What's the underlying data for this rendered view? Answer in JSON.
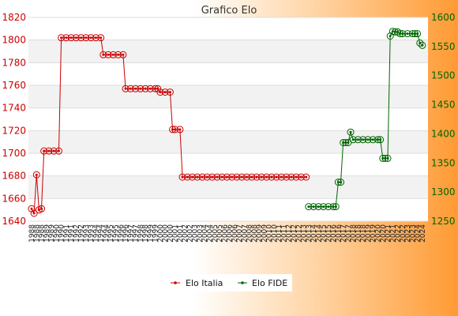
{
  "chart_data": {
    "type": "line",
    "title": "Grafico Elo",
    "y_left": {
      "min": 1640,
      "max": 1820,
      "step": 20,
      "color": "#cc0000"
    },
    "y_right": {
      "min": 1250,
      "max": 1600,
      "step": 50,
      "color": "#006600"
    },
    "grid": true,
    "legend_placement": "bottom",
    "x_tick_labels": [
      "1988",
      "1989",
      "1990",
      "1991",
      "1992",
      "1993",
      "1994",
      "1995",
      "1996",
      "1997",
      "1998",
      "1999",
      "2000",
      "2001",
      "2002",
      "2003",
      "2004",
      "2005",
      "2006",
      "2007",
      "2008",
      "2009",
      "2010",
      "2011",
      "2012",
      "2013",
      "2014",
      "2015",
      "2016",
      "2017",
      "2018",
      "2019",
      "2020",
      "2021",
      "2022",
      "2023",
      "2024"
    ],
    "series": [
      {
        "name": "Elo Italia",
        "axis": "left",
        "color": "#cc0000",
        "points": [
          {
            "i": 0,
            "y": 1651
          },
          {
            "i": 1,
            "y": 1647
          },
          {
            "i": 2,
            "y": 1681
          },
          {
            "i": 3,
            "y": 1650
          },
          {
            "i": 4,
            "y": 1651
          },
          {
            "i": 5,
            "y": 1702
          },
          {
            "i": 7,
            "y": 1702
          },
          {
            "i": 9,
            "y": 1702
          },
          {
            "i": 11,
            "y": 1702
          },
          {
            "i": 12,
            "y": 1802
          },
          {
            "i": 14,
            "y": 1802
          },
          {
            "i": 16,
            "y": 1802
          },
          {
            "i": 18,
            "y": 1802
          },
          {
            "i": 20,
            "y": 1802
          },
          {
            "i": 22,
            "y": 1802
          },
          {
            "i": 24,
            "y": 1802
          },
          {
            "i": 26,
            "y": 1802
          },
          {
            "i": 28,
            "y": 1802
          },
          {
            "i": 29,
            "y": 1787
          },
          {
            "i": 31,
            "y": 1787
          },
          {
            "i": 33,
            "y": 1787
          },
          {
            "i": 35,
            "y": 1787
          },
          {
            "i": 37,
            "y": 1787
          },
          {
            "i": 38,
            "y": 1757
          },
          {
            "i": 40,
            "y": 1757
          },
          {
            "i": 42,
            "y": 1757
          },
          {
            "i": 44,
            "y": 1757
          },
          {
            "i": 46,
            "y": 1757
          },
          {
            "i": 48,
            "y": 1757
          },
          {
            "i": 50,
            "y": 1757
          },
          {
            "i": 51,
            "y": 1757
          },
          {
            "i": 52,
            "y": 1754
          },
          {
            "i": 54,
            "y": 1754
          },
          {
            "i": 56,
            "y": 1754
          },
          {
            "i": 57,
            "y": 1721
          },
          {
            "i": 58,
            "y": 1721
          },
          {
            "i": 60,
            "y": 1721
          },
          {
            "i": 61,
            "y": 1679
          },
          {
            "i": 63,
            "y": 1679
          },
          {
            "i": 65,
            "y": 1679
          },
          {
            "i": 67,
            "y": 1679
          },
          {
            "i": 69,
            "y": 1679
          },
          {
            "i": 71,
            "y": 1679
          },
          {
            "i": 73,
            "y": 1679
          },
          {
            "i": 75,
            "y": 1679
          },
          {
            "i": 77,
            "y": 1679
          },
          {
            "i": 79,
            "y": 1679
          },
          {
            "i": 81,
            "y": 1679
          },
          {
            "i": 83,
            "y": 1679
          },
          {
            "i": 85,
            "y": 1679
          },
          {
            "i": 87,
            "y": 1679
          },
          {
            "i": 89,
            "y": 1679
          },
          {
            "i": 91,
            "y": 1679
          },
          {
            "i": 93,
            "y": 1679
          },
          {
            "i": 95,
            "y": 1679
          },
          {
            "i": 97,
            "y": 1679
          },
          {
            "i": 99,
            "y": 1679
          },
          {
            "i": 101,
            "y": 1679
          },
          {
            "i": 103,
            "y": 1679
          },
          {
            "i": 105,
            "y": 1679
          },
          {
            "i": 107,
            "y": 1679
          },
          {
            "i": 109,
            "y": 1679
          },
          {
            "i": 111,
            "y": 1679
          }
        ]
      },
      {
        "name": "Elo FIDE",
        "axis": "right",
        "color": "#006600",
        "points": [
          {
            "i": 112,
            "y": 1275
          },
          {
            "i": 114,
            "y": 1275
          },
          {
            "i": 116,
            "y": 1275
          },
          {
            "i": 118,
            "y": 1275
          },
          {
            "i": 120,
            "y": 1275
          },
          {
            "i": 122,
            "y": 1275
          },
          {
            "i": 123,
            "y": 1275
          },
          {
            "i": 124,
            "y": 1317
          },
          {
            "i": 125,
            "y": 1317
          },
          {
            "i": 126,
            "y": 1385
          },
          {
            "i": 127,
            "y": 1385
          },
          {
            "i": 128,
            "y": 1385
          },
          {
            "i": 129,
            "y": 1403
          },
          {
            "i": 130,
            "y": 1390
          },
          {
            "i": 132,
            "y": 1390
          },
          {
            "i": 134,
            "y": 1390
          },
          {
            "i": 136,
            "y": 1390
          },
          {
            "i": 138,
            "y": 1390
          },
          {
            "i": 140,
            "y": 1390
          },
          {
            "i": 141,
            "y": 1390
          },
          {
            "i": 142,
            "y": 1358
          },
          {
            "i": 143,
            "y": 1358
          },
          {
            "i": 144,
            "y": 1358
          },
          {
            "i": 145,
            "y": 1568
          },
          {
            "i": 146,
            "y": 1576
          },
          {
            "i": 147,
            "y": 1575
          },
          {
            "i": 148,
            "y": 1575
          },
          {
            "i": 149,
            "y": 1572
          },
          {
            "i": 150,
            "y": 1572
          },
          {
            "i": 152,
            "y": 1572
          },
          {
            "i": 154,
            "y": 1572
          },
          {
            "i": 155,
            "y": 1572
          },
          {
            "i": 156,
            "y": 1572
          },
          {
            "i": 157,
            "y": 1556
          },
          {
            "i": 158,
            "y": 1552
          }
        ]
      }
    ]
  }
}
